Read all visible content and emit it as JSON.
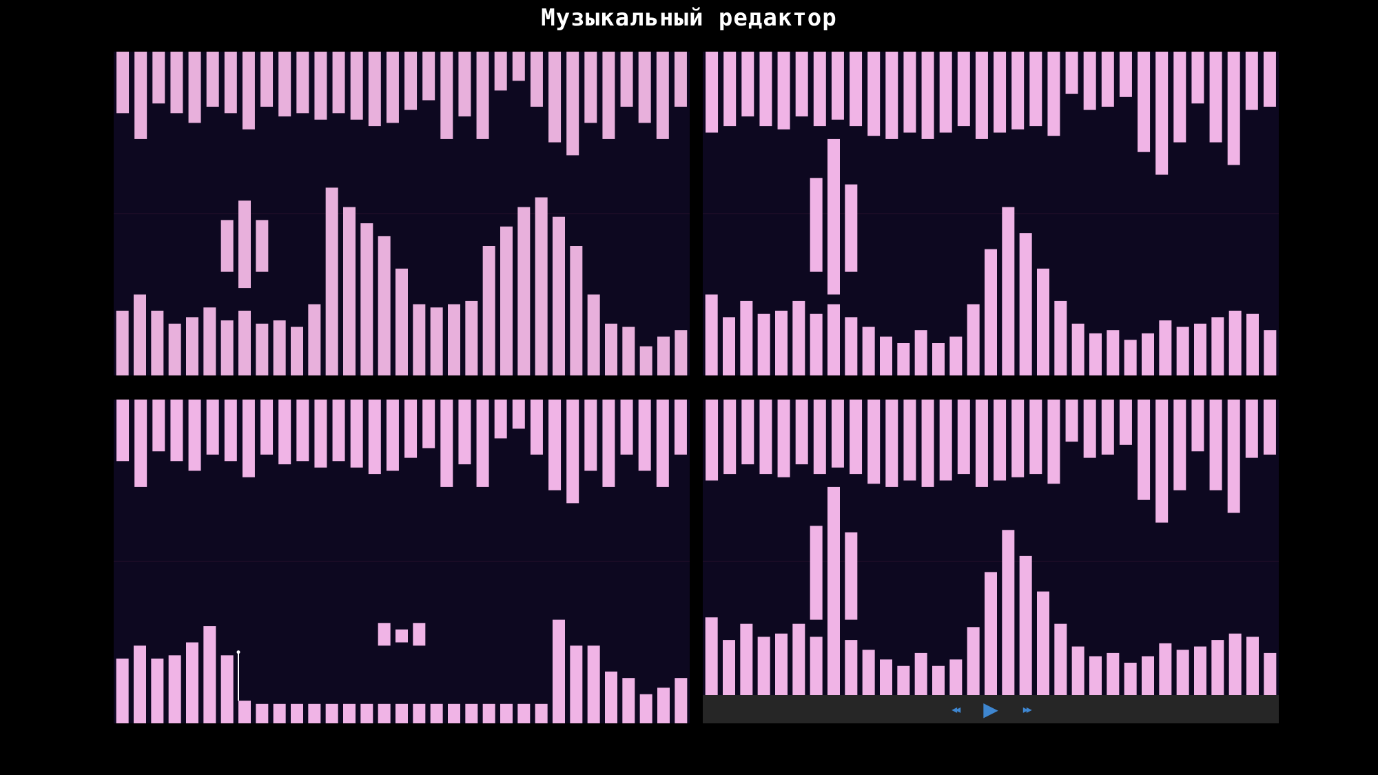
{
  "app": {
    "title": "Музыкальный редактор"
  },
  "colors": {
    "background": "#000000",
    "panel": "#0d0820",
    "bar": "#f0b4e6",
    "transport_bar": "#262626",
    "transport_icon": "#3e86d0"
  },
  "transport": {
    "rewind_glyph": "◂◂",
    "play_glyph": "▶",
    "forward_glyph": "▸▸",
    "icons": [
      "rewind-icon",
      "play-icon",
      "fast-forward-icon"
    ]
  },
  "panels": [
    {
      "id": "tl",
      "top_bars": [
        0.19,
        0.27,
        0.16,
        0.19,
        0.22,
        0.17,
        0.19,
        0.24,
        0.17,
        0.2,
        0.19,
        0.21,
        0.19,
        0.21,
        0.23,
        0.22,
        0.18,
        0.15,
        0.27,
        0.2,
        0.27,
        0.12,
        0.09,
        0.17,
        0.28,
        0.32,
        0.22,
        0.27,
        0.17,
        0.22,
        0.27,
        0.17
      ],
      "bottom_bars": [
        0.2,
        0.25,
        0.2,
        0.16,
        0.18,
        0.21,
        0.17,
        0.2,
        0.16,
        0.17,
        0.15,
        0.22,
        0.58,
        0.52,
        0.47,
        0.43,
        0.33,
        0.22,
        0.21,
        0.22,
        0.23,
        0.4,
        0.46,
        0.52,
        0.55,
        0.49,
        0.4,
        0.25,
        0.16,
        0.15,
        0.09,
        0.12,
        0.14
      ],
      "floating_bars": [
        {
          "index": 6,
          "value_top": 0.48,
          "value_bottom": 0.32
        },
        {
          "index": 7,
          "value_top": 0.54,
          "value_bottom": 0.27
        },
        {
          "index": 8,
          "value_top": 0.48,
          "value_bottom": 0.32
        }
      ]
    },
    {
      "id": "tr",
      "top_bars": [
        0.25,
        0.23,
        0.2,
        0.23,
        0.24,
        0.2,
        0.23,
        0.21,
        0.23,
        0.26,
        0.27,
        0.25,
        0.27,
        0.25,
        0.23,
        0.27,
        0.25,
        0.24,
        0.23,
        0.26,
        0.13,
        0.18,
        0.17,
        0.14,
        0.31,
        0.38,
        0.28,
        0.16,
        0.28,
        0.35,
        0.18,
        0.17
      ],
      "bottom_bars": [
        0.25,
        0.18,
        0.23,
        0.19,
        0.2,
        0.23,
        0.19,
        0.22,
        0.18,
        0.15,
        0.12,
        0.1,
        0.14,
        0.1,
        0.12,
        0.22,
        0.39,
        0.52,
        0.44,
        0.33,
        0.23,
        0.16,
        0.13,
        0.14,
        0.11,
        0.13,
        0.17,
        0.15,
        0.16,
        0.18,
        0.2,
        0.19,
        0.14
      ],
      "floating_bars": [
        {
          "index": 6,
          "value_top": 0.61,
          "value_bottom": 0.32
        },
        {
          "index": 7,
          "value_top": 0.73,
          "value_bottom": 0.25
        },
        {
          "index": 8,
          "value_top": 0.59,
          "value_bottom": 0.32
        }
      ]
    },
    {
      "id": "bl",
      "top_bars": [
        0.19,
        0.27,
        0.16,
        0.19,
        0.22,
        0.17,
        0.19,
        0.24,
        0.17,
        0.2,
        0.19,
        0.21,
        0.19,
        0.21,
        0.23,
        0.22,
        0.18,
        0.15,
        0.27,
        0.2,
        0.27,
        0.12,
        0.09,
        0.17,
        0.28,
        0.32,
        0.22,
        0.27,
        0.17,
        0.22,
        0.27,
        0.17
      ],
      "bottom_bars": [
        0.2,
        0.24,
        0.2,
        0.21,
        0.25,
        0.3,
        0.21,
        0.07,
        0.06,
        0.06,
        0.06,
        0.06,
        0.06,
        0.06,
        0.06,
        0.06,
        0.06,
        0.06,
        0.06,
        0.06,
        0.06,
        0.06,
        0.06,
        0.06,
        0.06,
        0.32,
        0.24,
        0.24,
        0.16,
        0.14,
        0.09,
        0.11,
        0.14
      ],
      "floating_bars": [
        {
          "index": 15,
          "value_top": 0.31,
          "value_bottom": 0.24
        },
        {
          "index": 16,
          "value_top": 0.29,
          "value_bottom": 0.25
        },
        {
          "index": 17,
          "value_top": 0.31,
          "value_bottom": 0.24
        }
      ],
      "cursor_index": 7,
      "cursor_value": 0.22
    },
    {
      "id": "br",
      "top_bars": [
        0.25,
        0.23,
        0.2,
        0.23,
        0.24,
        0.2,
        0.23,
        0.21,
        0.23,
        0.26,
        0.27,
        0.25,
        0.27,
        0.25,
        0.23,
        0.27,
        0.25,
        0.24,
        0.23,
        0.26,
        0.13,
        0.18,
        0.17,
        0.14,
        0.31,
        0.38,
        0.28,
        0.16,
        0.28,
        0.35,
        0.18,
        0.17
      ],
      "bottom_bars": [
        0.24,
        0.17,
        0.22,
        0.18,
        0.19,
        0.22,
        0.18,
        0.21,
        0.17,
        0.14,
        0.11,
        0.09,
        0.13,
        0.09,
        0.11,
        0.21,
        0.38,
        0.51,
        0.43,
        0.32,
        0.22,
        0.15,
        0.12,
        0.13,
        0.1,
        0.12,
        0.16,
        0.14,
        0.15,
        0.17,
        0.19,
        0.18,
        0.13
      ],
      "floating_bars": [
        {
          "index": 6,
          "value_top": 0.61,
          "value_bottom": 0.32
        },
        {
          "index": 7,
          "value_top": 0.73,
          "value_bottom": 0.25
        },
        {
          "index": 8,
          "value_top": 0.59,
          "value_bottom": 0.32
        }
      ],
      "has_transport": true
    }
  ]
}
